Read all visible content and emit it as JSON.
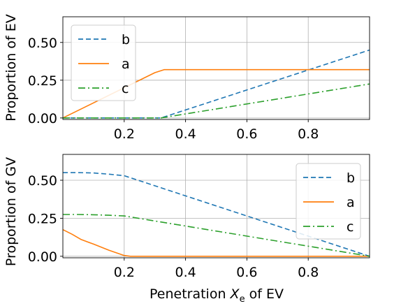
{
  "chart_data": [
    {
      "type": "line",
      "ylabel": "Proportion of EV",
      "xlim": [
        0.0,
        1.0
      ],
      "ylim": [
        -0.01,
        0.67
      ],
      "xticks": [
        "0.2",
        "0.4",
        "0.6",
        "0.8"
      ],
      "yticks": [
        "0.00",
        "0.25",
        "0.50"
      ],
      "grid": true,
      "legend_position": "upper-left",
      "series": [
        {
          "name": "b",
          "color": "#1f77b4",
          "style": "dashed",
          "x": [
            0.0,
            0.32,
            1.0
          ],
          "y": [
            0.0,
            0.0,
            0.45
          ]
        },
        {
          "name": "a",
          "color": "#ff7f0e",
          "style": "solid",
          "x": [
            0.0,
            0.3,
            0.33,
            1.0
          ],
          "y": [
            0.0,
            0.3,
            0.32,
            0.32
          ]
        },
        {
          "name": "c",
          "color": "#2ca02c",
          "style": "dashdot",
          "x": [
            0.0,
            0.32,
            1.0
          ],
          "y": [
            0.0,
            0.0,
            0.225
          ]
        }
      ]
    },
    {
      "type": "line",
      "ylabel": "Proportion of GV",
      "xlabel_pre": "Penetration ",
      "xlabel_var": "X",
      "xlabel_sub": "e",
      "xlabel_post": " of EV",
      "xlim": [
        0.0,
        1.0
      ],
      "ylim": [
        -0.01,
        0.67
      ],
      "xticks": [
        "0.2",
        "0.4",
        "0.6",
        "0.8"
      ],
      "yticks": [
        "0.00",
        "0.25",
        "0.50"
      ],
      "grid": true,
      "legend_position": "upper-right",
      "series": [
        {
          "name": "b",
          "color": "#1f77b4",
          "style": "dashed",
          "x": [
            0.0,
            0.05,
            0.1,
            0.15,
            0.2,
            1.0
          ],
          "y": [
            0.55,
            0.55,
            0.548,
            0.54,
            0.53,
            0.0
          ]
        },
        {
          "name": "a",
          "color": "#ff7f0e",
          "style": "solid",
          "x": [
            0.0,
            0.03,
            0.06,
            0.1,
            0.15,
            0.2,
            0.22,
            1.0
          ],
          "y": [
            0.175,
            0.145,
            0.11,
            0.08,
            0.04,
            0.005,
            0.0,
            0.0
          ]
        },
        {
          "name": "c",
          "color": "#2ca02c",
          "style": "dashdot",
          "x": [
            0.0,
            0.05,
            0.1,
            0.15,
            0.2,
            1.0
          ],
          "y": [
            0.275,
            0.275,
            0.273,
            0.27,
            0.265,
            0.0
          ]
        }
      ]
    }
  ]
}
